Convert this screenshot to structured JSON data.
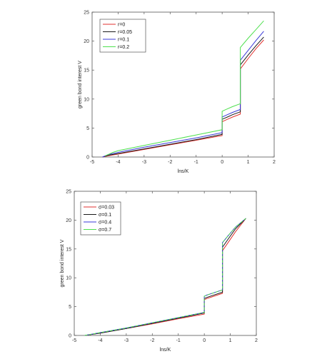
{
  "chart_data": [
    {
      "type": "line",
      "xlabel": "lns/K",
      "ylabel": "green bond interest V",
      "xlim": [
        -5,
        2
      ],
      "ylim": [
        0,
        25
      ],
      "xticks": [
        -5,
        -4,
        -3,
        -2,
        -1,
        0,
        1,
        2
      ],
      "yticks": [
        0,
        5,
        10,
        15,
        20,
        25
      ],
      "grid": false,
      "legend_position": "top-left",
      "series": [
        {
          "name": "r=0",
          "color": "#e0312f",
          "x": [
            -4.6,
            -4.4,
            -4.0,
            -3.0,
            -2.0,
            -1.0,
            0.0,
            0.0,
            0.1,
            0.2,
            0.4,
            0.7,
            0.7,
            1.0,
            1.3,
            1.6
          ],
          "y": [
            0.0,
            0.2,
            0.5,
            1.3,
            2.1,
            2.9,
            3.7,
            6.1,
            6.3,
            6.5,
            6.9,
            7.4,
            15.2,
            17.0,
            18.7,
            20.2
          ]
        },
        {
          "name": "r=0.05",
          "color": "#1a1a1a",
          "x": [
            -4.6,
            -4.4,
            -4.0,
            -3.0,
            -2.0,
            -1.0,
            0.0,
            0.0,
            0.1,
            0.2,
            0.4,
            0.7,
            0.7,
            1.0,
            1.3,
            1.6
          ],
          "y": [
            0.0,
            0.3,
            0.6,
            1.4,
            2.2,
            3.0,
            3.9,
            6.5,
            6.7,
            6.9,
            7.3,
            7.8,
            15.9,
            17.6,
            19.2,
            20.7
          ]
        },
        {
          "name": "r=0.1",
          "color": "#3a3ad8",
          "x": [
            -4.6,
            -4.4,
            -4.0,
            -3.0,
            -2.0,
            -1.0,
            0.0,
            0.0,
            0.1,
            0.2,
            0.4,
            0.7,
            0.7,
            1.0,
            1.3,
            1.6
          ],
          "y": [
            0.0,
            0.4,
            0.8,
            1.7,
            2.5,
            3.3,
            4.2,
            6.9,
            7.1,
            7.3,
            7.7,
            8.2,
            16.7,
            18.4,
            20.1,
            21.7
          ]
        },
        {
          "name": "r=0.2",
          "color": "#4ee04e",
          "x": [
            -4.5,
            -4.2,
            -4.0,
            -3.0,
            -2.0,
            -1.0,
            0.0,
            0.0,
            0.1,
            0.2,
            0.4,
            0.7,
            0.7,
            1.0,
            1.3,
            1.6
          ],
          "y": [
            0.2,
            0.8,
            1.1,
            2.0,
            2.9,
            3.8,
            4.7,
            7.9,
            8.1,
            8.3,
            8.7,
            9.2,
            18.9,
            20.5,
            22.0,
            23.5
          ]
        }
      ]
    },
    {
      "type": "line",
      "xlabel": "lns/K",
      "ylabel": "green bond interest V",
      "xlim": [
        -5,
        2
      ],
      "ylim": [
        0,
        25
      ],
      "xticks": [
        -5,
        -4,
        -3,
        -2,
        -1,
        0,
        1,
        2
      ],
      "yticks": [
        0,
        5,
        10,
        15,
        20,
        25
      ],
      "grid": false,
      "legend_position": "top-left",
      "series": [
        {
          "name": "σ=0.03",
          "color": "#e0312f",
          "x": [
            -4.6,
            -4.0,
            -3.0,
            -2.0,
            -1.0,
            0.0,
            0.0,
            0.1,
            0.3,
            0.7,
            0.7,
            0.9,
            1.2,
            1.6
          ],
          "y": [
            0.0,
            0.4,
            1.2,
            2.0,
            2.9,
            3.7,
            6.2,
            6.4,
            6.7,
            7.3,
            14.7,
            16.0,
            18.0,
            20.3
          ]
        },
        {
          "name": "σ=0.1",
          "color": "#1a1a1a",
          "x": [
            -4.6,
            -4.0,
            -3.0,
            -2.0,
            -1.0,
            0.0,
            0.0,
            0.1,
            0.3,
            0.7,
            0.7,
            0.9,
            1.2,
            1.6
          ],
          "y": [
            0.0,
            0.4,
            1.2,
            2.1,
            3.0,
            3.9,
            6.4,
            6.6,
            6.9,
            7.5,
            15.3,
            16.6,
            18.5,
            20.3
          ]
        },
        {
          "name": "σ=0.4",
          "color": "#3a3ad8",
          "x": [
            -4.6,
            -4.0,
            -3.0,
            -2.0,
            -1.0,
            0.0,
            0.0,
            0.1,
            0.3,
            0.7,
            0.7,
            0.9,
            1.2,
            1.6
          ],
          "y": [
            0.0,
            0.5,
            1.3,
            2.2,
            3.1,
            4.0,
            6.8,
            7.0,
            7.3,
            7.9,
            16.1,
            17.2,
            18.8,
            20.3
          ]
        },
        {
          "name": "σ=0.7",
          "color": "#4ee04e",
          "x": [
            -4.6,
            -4.0,
            -3.0,
            -2.0,
            -1.0,
            0.0,
            0.0,
            0.1,
            0.3,
            0.7,
            0.7,
            0.9,
            1.2,
            1.6
          ],
          "y": [
            0.0,
            0.5,
            1.3,
            2.2,
            3.1,
            4.0,
            6.8,
            7.0,
            7.3,
            7.9,
            16.1,
            17.2,
            18.8,
            20.3
          ]
        }
      ]
    }
  ]
}
